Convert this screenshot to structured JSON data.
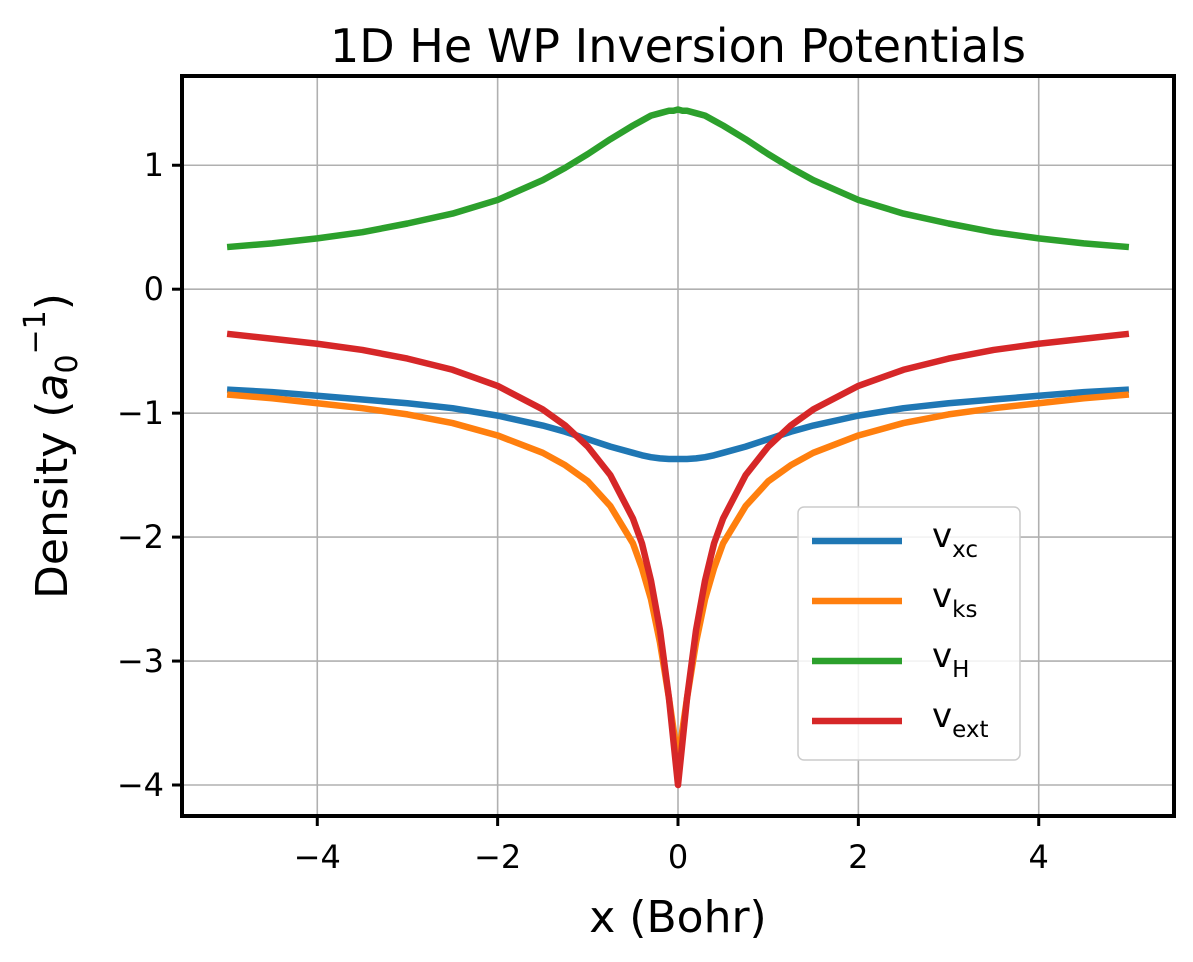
{
  "chart_data": {
    "type": "line",
    "title": "1D He WP Inversion Potentials",
    "xlabel": "x (Bohr)",
    "ylabel": {
      "prefix": "Density (",
      "base": "a",
      "sub": "0",
      "sup": "−1",
      "suffix": ")"
    },
    "xlim": [
      -5.5,
      5.5
    ],
    "ylim": [
      -4.25,
      1.72
    ],
    "x_ticks": [
      {
        "value": -4,
        "label": "−4"
      },
      {
        "value": -2,
        "label": "−2"
      },
      {
        "value": 0,
        "label": "0"
      },
      {
        "value": 2,
        "label": "2"
      },
      {
        "value": 4,
        "label": "4"
      }
    ],
    "y_ticks": [
      {
        "value": 1,
        "label": "1"
      },
      {
        "value": 0,
        "label": "0"
      },
      {
        "value": -1,
        "label": "−1"
      },
      {
        "value": -2,
        "label": "−2"
      },
      {
        "value": -3,
        "label": "−3"
      },
      {
        "value": -4,
        "label": "−4"
      }
    ],
    "grid": true,
    "legend_position": "lower-right",
    "x": [
      -5,
      -4.5,
      -4,
      -3.5,
      -3,
      -2.5,
      -2,
      -1.5,
      -1.25,
      -1,
      -0.75,
      -0.5,
      -0.4,
      -0.3,
      -0.2,
      -0.1,
      -0.05,
      0,
      0.05,
      0.1,
      0.2,
      0.3,
      0.4,
      0.5,
      0.75,
      1,
      1.25,
      1.5,
      2,
      2.5,
      3,
      3.5,
      4,
      4.5,
      5
    ],
    "series": [
      {
        "name": "v",
        "sub": "xc",
        "color": "#1f77b4",
        "values": [
          -0.81,
          -0.83,
          -0.86,
          -0.89,
          -0.92,
          -0.96,
          -1.02,
          -1.1,
          -1.15,
          -1.21,
          -1.27,
          -1.32,
          -1.34,
          -1.355,
          -1.365,
          -1.37,
          -1.37,
          -1.37,
          -1.37,
          -1.37,
          -1.365,
          -1.355,
          -1.34,
          -1.32,
          -1.27,
          -1.21,
          -1.15,
          -1.1,
          -1.02,
          -0.96,
          -0.92,
          -0.89,
          -0.86,
          -0.83,
          -0.81
        ]
      },
      {
        "name": "v",
        "sub": "ks",
        "color": "#ff7f0e",
        "values": [
          -0.85,
          -0.88,
          -0.92,
          -0.96,
          -1.01,
          -1.08,
          -1.18,
          -1.32,
          -1.42,
          -1.55,
          -1.75,
          -2.05,
          -2.25,
          -2.5,
          -2.85,
          -3.3,
          -3.55,
          -3.8,
          -3.55,
          -3.3,
          -2.85,
          -2.5,
          -2.25,
          -2.05,
          -1.75,
          -1.55,
          -1.42,
          -1.32,
          -1.18,
          -1.08,
          -1.01,
          -0.96,
          -0.92,
          -0.88,
          -0.85
        ]
      },
      {
        "name": "v",
        "sub": "H",
        "color": "#2ca02c",
        "values": [
          0.34,
          0.37,
          0.41,
          0.46,
          0.53,
          0.61,
          0.72,
          0.88,
          0.98,
          1.09,
          1.21,
          1.32,
          1.36,
          1.4,
          1.42,
          1.44,
          1.44,
          1.45,
          1.44,
          1.44,
          1.42,
          1.4,
          1.36,
          1.32,
          1.21,
          1.09,
          0.98,
          0.88,
          0.72,
          0.61,
          0.53,
          0.46,
          0.41,
          0.37,
          0.34
        ]
      },
      {
        "name": "v",
        "sub": "ext",
        "color": "#d62728",
        "values": [
          -0.36,
          -0.4,
          -0.44,
          -0.49,
          -0.56,
          -0.65,
          -0.78,
          -0.97,
          -1.1,
          -1.27,
          -1.5,
          -1.85,
          -2.05,
          -2.35,
          -2.75,
          -3.3,
          -3.65,
          -4.0,
          -3.65,
          -3.3,
          -2.75,
          -2.35,
          -2.05,
          -1.85,
          -1.5,
          -1.27,
          -1.1,
          -0.97,
          -0.78,
          -0.65,
          -0.56,
          -0.49,
          -0.44,
          -0.4,
          -0.36
        ]
      }
    ]
  }
}
